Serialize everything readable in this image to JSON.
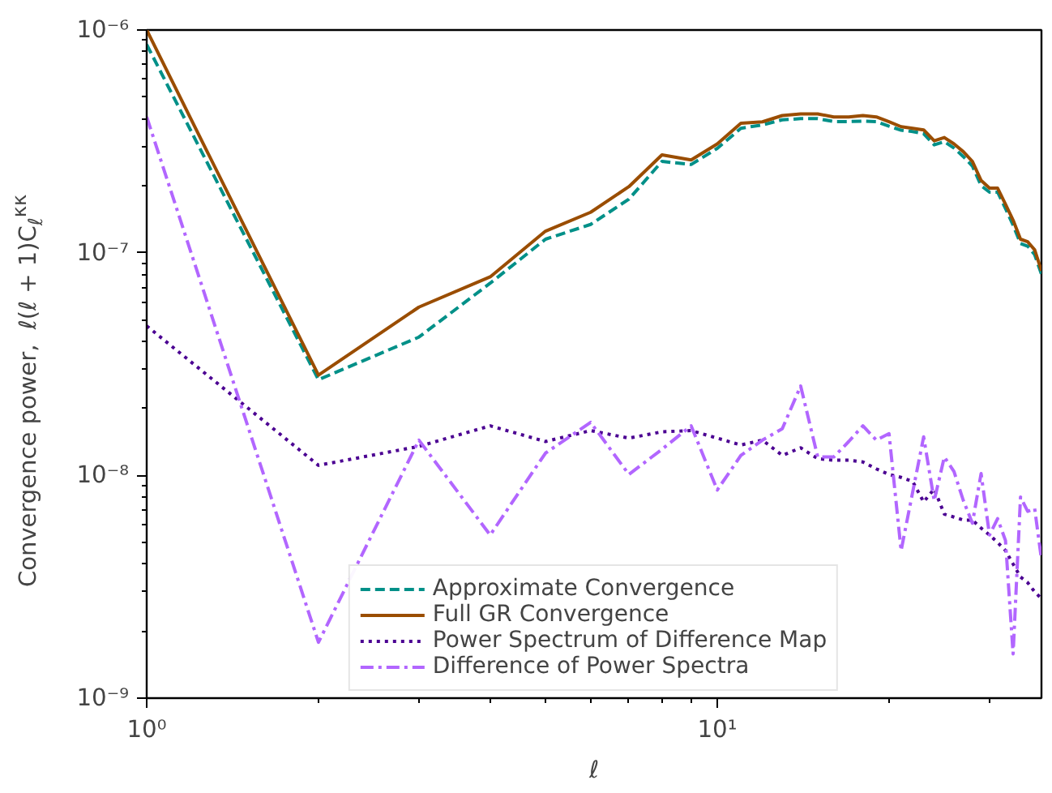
{
  "chart_data": {
    "type": "line",
    "xlabel": "ℓ",
    "ylabel": "Convergence power,  ℓ(ℓ + 1)C$_{ℓ}$$^{κκ}$",
    "x": [
      1,
      2,
      3,
      4,
      5,
      6,
      7,
      8,
      9,
      10,
      11,
      12,
      13,
      14,
      15,
      16,
      17,
      18,
      19,
      20,
      21,
      22,
      23,
      24,
      25,
      26,
      27,
      28,
      29,
      30,
      31,
      32,
      33,
      34,
      35,
      36,
      37
    ],
    "series": [
      {
        "name": "Approximate Convergence",
        "color": "#009088",
        "line_style": "dashed",
        "values": [
          8.6e-07,
          2.69e-08,
          4.18e-08,
          7.3e-08,
          1.15e-07,
          1.34e-07,
          1.74e-07,
          2.57e-07,
          2.49e-07,
          2.94e-07,
          3.62e-07,
          3.75e-07,
          3.95e-07,
          4e-07,
          4e-07,
          3.88e-07,
          3.88e-07,
          3.9e-07,
          3.88e-07,
          3.7e-07,
          3.55e-07,
          3.5e-07,
          3.42e-07,
          3.05e-07,
          3.15e-07,
          2.95e-07,
          2.7e-07,
          2.45e-07,
          2e-07,
          1.87e-07,
          1.87e-07,
          1.58e-07,
          1.33e-07,
          1.1e-07,
          1.07e-07,
          9.8e-08,
          8e-08
        ]
      },
      {
        "name": "Full GR Convergence",
        "color": "#9a4d00",
        "line_style": "solid",
        "values": [
          1e-06,
          2.82e-08,
          5.7e-08,
          7.79e-08,
          1.25e-07,
          1.52e-07,
          1.98e-07,
          2.75e-07,
          2.61e-07,
          3.08e-07,
          3.81e-07,
          3.87e-07,
          4.13e-07,
          4.2e-07,
          4.2e-07,
          4.07e-07,
          4.07e-07,
          4.13e-07,
          4.07e-07,
          3.87e-07,
          3.68e-07,
          3.62e-07,
          3.56e-07,
          3.18e-07,
          3.29e-07,
          3.08e-07,
          2.84e-07,
          2.57e-07,
          2.11e-07,
          1.95e-07,
          1.95e-07,
          1.65e-07,
          1.4e-07,
          1.15e-07,
          1.12e-07,
          1.03e-07,
          8.3e-08
        ]
      },
      {
        "name": "Power Spectrum of Difference Map",
        "color": "#4b0092",
        "line_style": "dotted",
        "values": [
          4.69e-08,
          1.11e-08,
          1.35e-08,
          1.67e-08,
          1.42e-08,
          1.59e-08,
          1.47e-08,
          1.57e-08,
          1.59e-08,
          1.47e-08,
          1.37e-08,
          1.44e-08,
          1.23e-08,
          1.33e-08,
          1.19e-08,
          1.17e-08,
          1.17e-08,
          1.15e-08,
          1.07e-08,
          1.01e-08,
          9.8e-09,
          9.4e-09,
          7.6e-09,
          8.7e-09,
          6.7e-09,
          6.5e-09,
          6.3e-09,
          6.3e-09,
          5.8e-09,
          5.4e-09,
          5e-09,
          4.6e-09,
          4e-09,
          3.5e-09,
          3.3e-09,
          3e-09,
          2.8e-09
        ]
      },
      {
        "name": "Difference of Power Spectra",
        "color": "#b266ff",
        "line_style": "dashdot",
        "values": [
          4.07e-07,
          1.78e-09,
          1.44e-08,
          5.4e-09,
          1.26e-08,
          1.73e-08,
          1.01e-08,
          1.31e-08,
          1.67e-08,
          8.6e-09,
          1.23e-08,
          1.44e-08,
          1.62e-08,
          2.52e-08,
          1.21e-08,
          1.21e-08,
          1.42e-08,
          1.67e-08,
          1.44e-08,
          1.54e-08,
          4.6e-09,
          8.4e-09,
          1.49e-08,
          7.7e-09,
          1.21e-08,
          1.04e-08,
          7.7e-09,
          6.1e-09,
          1.02e-08,
          5.4e-09,
          6.4e-09,
          5.1e-09,
          1.58e-09,
          8e-09,
          6.9e-09,
          7.1e-09,
          4.2e-09
        ]
      }
    ],
    "log": "xy",
    "xlim": [
      1,
      37
    ],
    "ylim": [
      1e-09,
      1e-06
    ],
    "xticks": [
      {
        "value": 1,
        "label": "10⁰"
      },
      {
        "value": 10,
        "label": "10¹"
      }
    ],
    "yticks": [
      {
        "value": 1e-09,
        "label": "10⁻⁹"
      },
      {
        "value": 1e-08,
        "label": "10⁻⁸"
      },
      {
        "value": 1e-07,
        "label": "10⁻⁷"
      },
      {
        "value": 1e-06,
        "label": "10⁻⁶"
      }
    ],
    "grid": false,
    "legend": "bottom"
  }
}
